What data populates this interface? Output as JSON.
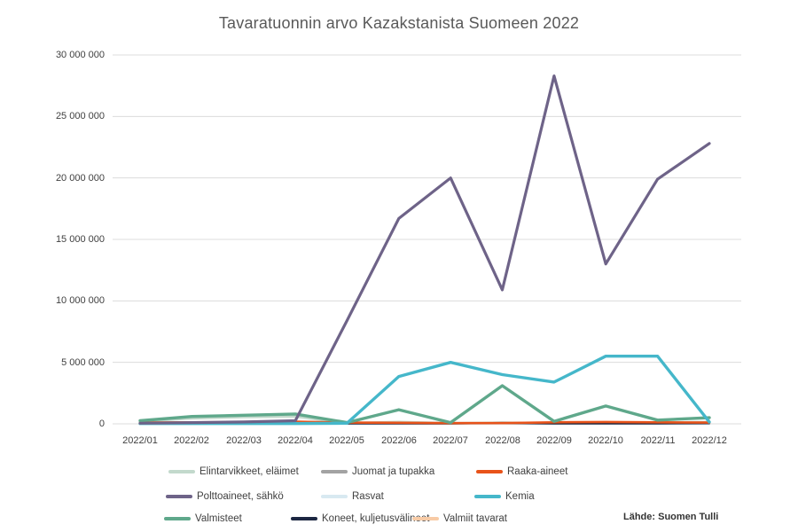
{
  "title": "Tavaratuonnin arvo Kazakstanista Suomeen 2022",
  "source_note": "Lähde: Suomen Tulli",
  "chart_data": {
    "type": "line",
    "title": "Tavaratuonnin arvo Kazakstanista Suomeen 2022",
    "xlabel": "",
    "ylabel": "",
    "grid": true,
    "legend_position": "bottom",
    "categories": [
      "2022/01",
      "2022/02",
      "2022/03",
      "2022/04",
      "2022/05",
      "2022/06",
      "2022/07",
      "2022/08",
      "2022/09",
      "2022/10",
      "2022/11",
      "2022/12"
    ],
    "y_axis": {
      "min": 0,
      "max": 30000000,
      "tick_interval": 5000000,
      "ticks": [
        {
          "value": 0,
          "label": "0"
        },
        {
          "value": 5000000,
          "label": "5 000 000"
        },
        {
          "value": 10000000,
          "label": "10 000 000"
        },
        {
          "value": 15000000,
          "label": "15 000 000"
        },
        {
          "value": 20000000,
          "label": "20 000 000"
        },
        {
          "value": 25000000,
          "label": "25 000 000"
        },
        {
          "value": 30000000,
          "label": "30 000 000"
        }
      ]
    },
    "series": [
      {
        "name": "Elintarvikkeet, eläimet",
        "color": "#c3d9cc",
        "values": [
          200000,
          450000,
          550000,
          600000,
          50000,
          150000,
          50000,
          100000,
          50000,
          100000,
          100000,
          150000
        ]
      },
      {
        "name": "Juomat ja tupakka",
        "color": "#a3a3a3",
        "values": [
          50000,
          80000,
          80000,
          100000,
          40000,
          40000,
          30000,
          40000,
          30000,
          40000,
          40000,
          50000
        ]
      },
      {
        "name": "Raaka-aineet",
        "color": "#e8531a",
        "values": [
          100000,
          120000,
          130000,
          180000,
          100000,
          90000,
          60000,
          60000,
          120000,
          150000,
          120000,
          100000
        ]
      },
      {
        "name": "Polttoaineet, sähkö",
        "color": "#6e6388",
        "values": [
          50000,
          100000,
          150000,
          250000,
          8400000,
          16700000,
          20000000,
          10900000,
          28300000,
          13000000,
          19900000,
          22800000
        ]
      },
      {
        "name": "Rasvat",
        "color": "#d8e9f1",
        "values": [
          10000,
          10000,
          10000,
          10000,
          10000,
          10000,
          10000,
          10000,
          10000,
          10000,
          10000,
          10000
        ]
      },
      {
        "name": "Kemia",
        "color": "#45b7ca",
        "values": [
          20000,
          20000,
          20000,
          20000,
          50000,
          3850000,
          5000000,
          4000000,
          3400000,
          5500000,
          5500000,
          150000
        ]
      },
      {
        "name": "Valmisteet",
        "color": "#5fa88b",
        "values": [
          250000,
          600000,
          700000,
          800000,
          100000,
          1150000,
          100000,
          3100000,
          200000,
          1450000,
          300000,
          500000
        ]
      },
      {
        "name": "Koneet, kuljetusvälineet",
        "color": "#1c2742",
        "values": [
          30000,
          30000,
          30000,
          30000,
          20000,
          20000,
          30000,
          70000,
          30000,
          30000,
          30000,
          40000
        ]
      },
      {
        "name": "Valmiit tavarat",
        "color": "#f8cba6",
        "values": [
          60000,
          60000,
          60000,
          60000,
          50000,
          50000,
          60000,
          80000,
          60000,
          70000,
          60000,
          60000
        ]
      }
    ],
    "gridline_color": "#dcdcdc"
  }
}
